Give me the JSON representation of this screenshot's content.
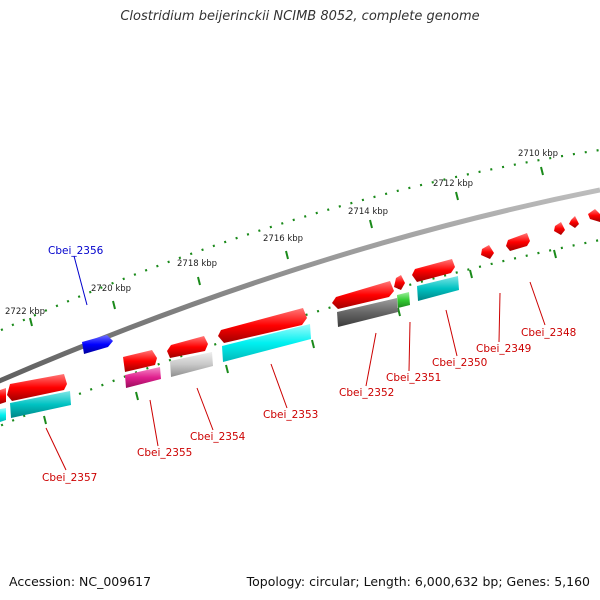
{
  "title": "Clostridium beijerinckii NCIMB 8052, complete genome",
  "footer": {
    "accession": "Accession: NC_009617",
    "topology": "Topology: circular; Length: 6,000,632 bp; Genes: 5,160"
  },
  "scale": {
    "unit": "kbp",
    "ticks": [
      "2710 kbp",
      "2712 kbp",
      "2714 kbp",
      "2716 kbp",
      "2718 kbp",
      "2720 kbp",
      "2722 kbp"
    ]
  },
  "colors": {
    "backbone": "#8a8a8a",
    "tick": "#1a8a1a",
    "forward_gene": "#ff0000",
    "reverse_gene_label": "#cc0000",
    "highlight_gene": "#0000ff",
    "highlight_label": "#0000cc",
    "cds_cyan": "#00e5e5",
    "cds_teal": "#00c2c2",
    "cds_magenta": "#e0208e",
    "cds_silver": "#c8c8c8",
    "cds_gray": "#666666",
    "cds_green": "#33cc33"
  },
  "genes": [
    {
      "label": "Cbei_2356",
      "color": "highlight_label"
    },
    {
      "label": "Cbei_2357",
      "color": "reverse_gene_label"
    },
    {
      "label": "Cbei_2355",
      "color": "reverse_gene_label"
    },
    {
      "label": "Cbei_2354",
      "color": "reverse_gene_label"
    },
    {
      "label": "Cbei_2353",
      "color": "reverse_gene_label"
    },
    {
      "label": "Cbei_2352",
      "color": "reverse_gene_label"
    },
    {
      "label": "Cbei_2351",
      "color": "reverse_gene_label"
    },
    {
      "label": "Cbei_2350",
      "color": "reverse_gene_label"
    },
    {
      "label": "Cbei_2349",
      "color": "reverse_gene_label"
    },
    {
      "label": "Cbei_2348",
      "color": "reverse_gene_label"
    }
  ]
}
